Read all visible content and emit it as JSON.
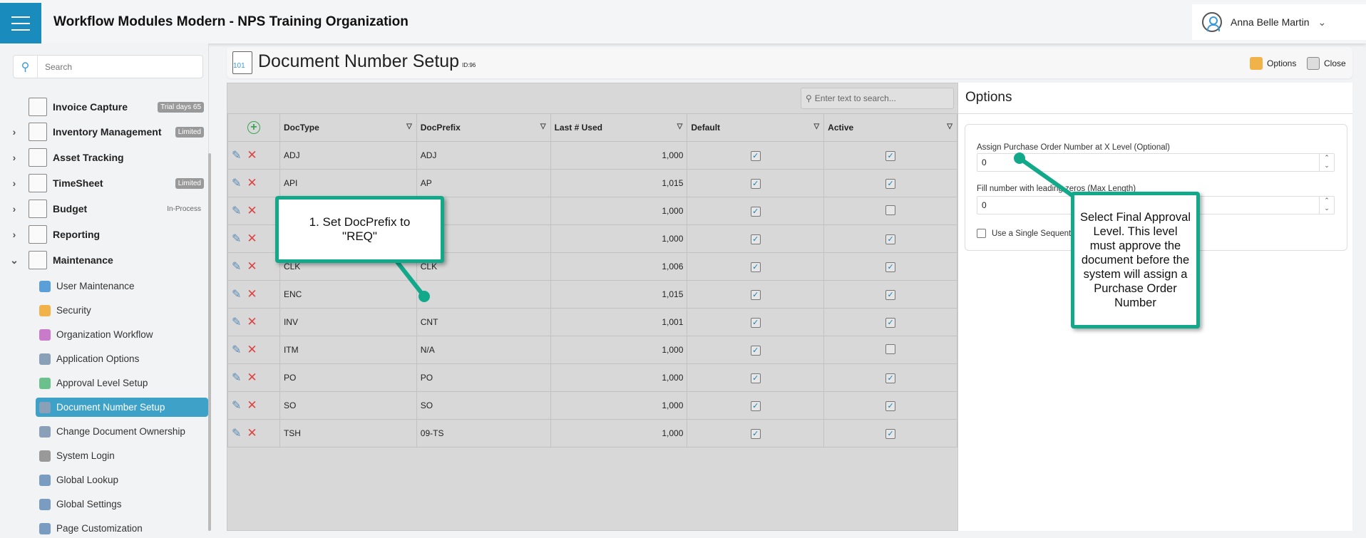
{
  "header": {
    "app_title": "Workflow Modules Modern - NPS Training Organization",
    "user_name": "Anna Belle Martin"
  },
  "sidebar": {
    "search_placeholder": "Search",
    "modules": [
      {
        "label": "Invoice Capture",
        "badge": "Trial days 65",
        "expandable": false
      },
      {
        "label": "Inventory Management",
        "badge": "Limited",
        "expandable": true
      },
      {
        "label": "Asset Tracking",
        "badge": "",
        "expandable": true
      },
      {
        "label": "TimeSheet",
        "badge": "Limited",
        "expandable": true
      },
      {
        "label": "Budget",
        "badge": "In-Process",
        "expandable": true
      },
      {
        "label": "Reporting",
        "badge": "",
        "expandable": true
      },
      {
        "label": "Maintenance",
        "badge": "",
        "expandable": true,
        "expanded": true
      }
    ],
    "maintenance_items": [
      "User Maintenance",
      "Security",
      "Organization Workflow",
      "Application Options",
      "Approval Level Setup",
      "Document Number Setup",
      "Change Document Ownership",
      "System Login",
      "Global Lookup",
      "Global Settings",
      "Page Customization"
    ],
    "active_item": "Document Number Setup"
  },
  "page": {
    "title": "Document Number Setup",
    "id_label": "ID:96",
    "icon_text": "101",
    "options_label": "Options",
    "close_label": "Close"
  },
  "grid": {
    "search_placeholder": "Enter text to search...",
    "columns": [
      "DocType",
      "DocPrefix",
      "Last # Used",
      "Default",
      "Active"
    ],
    "rows": [
      {
        "doctype": "ADJ",
        "prefix": "ADJ",
        "last": "1,000",
        "default": true,
        "active": true
      },
      {
        "doctype": "API",
        "prefix": "AP",
        "last": "1,015",
        "default": true,
        "active": true
      },
      {
        "doctype": "",
        "prefix": "",
        "last": "1,000",
        "default": true,
        "active": false
      },
      {
        "doctype": "",
        "prefix": "",
        "last": "1,000",
        "default": true,
        "active": true
      },
      {
        "doctype": "CLK",
        "prefix": "CLK",
        "last": "1,006",
        "default": true,
        "active": true
      },
      {
        "doctype": "ENC",
        "prefix": "",
        "last": "1,015",
        "default": true,
        "active": true
      },
      {
        "doctype": "INV",
        "prefix": "CNT",
        "last": "1,001",
        "default": true,
        "active": true
      },
      {
        "doctype": "ITM",
        "prefix": "N/A",
        "last": "1,000",
        "default": true,
        "active": false
      },
      {
        "doctype": "PO",
        "prefix": "PO",
        "last": "1,000",
        "default": true,
        "active": true
      },
      {
        "doctype": "SO",
        "prefix": "SO",
        "last": "1,000",
        "default": true,
        "active": true
      },
      {
        "doctype": "TSH",
        "prefix": "09-TS",
        "last": "1,000",
        "default": true,
        "active": true
      }
    ]
  },
  "options": {
    "title": "Options",
    "field1_label": "Assign Purchase Order Number at X Level (Optional)",
    "field1_value": "0",
    "field2_label": "Fill number with leading zeros (Max Length)",
    "field2_value": "0",
    "checkbox_label": "Use a Single Sequential",
    "checkbox_checked": false
  },
  "callouts": {
    "c1": "1. Set DocPrefix to \"REQ\"",
    "c2": "Select Final Approval Level. This level must approve the document before the system will assign a Purchase Order Number"
  },
  "colors": {
    "brand": "#1a8bbd",
    "active_item": "#3ea1c8",
    "callout": "#12a88a"
  }
}
